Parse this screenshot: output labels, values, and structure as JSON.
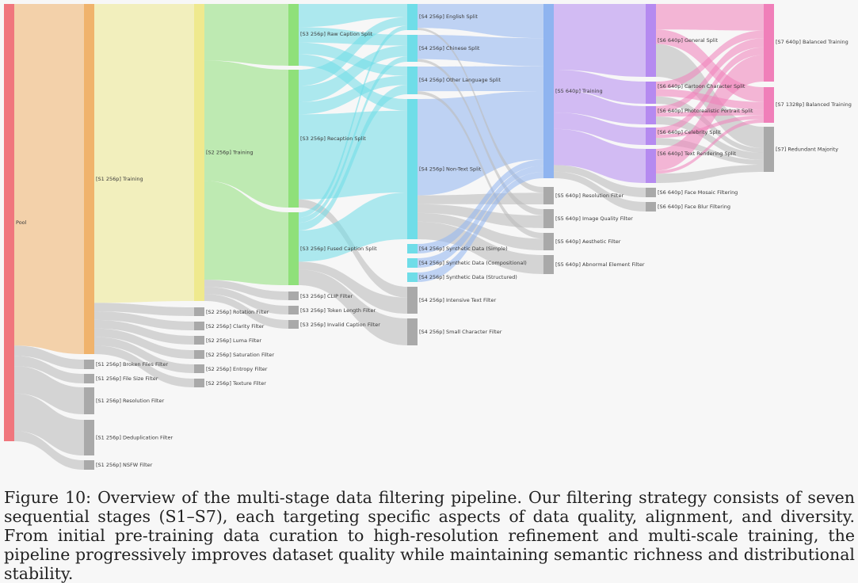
{
  "figure": {
    "caption": "Figure 10: Overview of the multi-stage data filtering pipeline. Our filtering strategy consists of seven sequential stages (S1–S7), each targeting specific aspects of data quality, alignment, and diversity. From initial pre-training data curation to high-resolution refinement and multi-scale training, the pipeline progressively improves dataset quality while maintaining semantic richness and distributional stability."
  },
  "colors": {
    "pool": "#f0767d",
    "s1": "#f0b36c",
    "s2": "#efe98e",
    "s3": "#8fe07a",
    "s4": "#6fdde8",
    "s5": "#8fb4f0",
    "s6": "#b58af0",
    "s7": "#f07fb9",
    "filter": "#a9a9a9",
    "gray_link": "#bdbdbd"
  },
  "nodes": [
    {
      "id": "pool",
      "label": "Pool",
      "kind": "pool"
    },
    {
      "id": "s1t",
      "label": "[S1 256p] Training",
      "kind": "s1"
    },
    {
      "id": "s1f1",
      "label": "[S1 256p] Broken Files Filter",
      "kind": "filter"
    },
    {
      "id": "s1f2",
      "label": "[S1 256p] File Size Filter",
      "kind": "filter"
    },
    {
      "id": "s1f3",
      "label": "[S1 256p] Resolution Filter",
      "kind": "filter"
    },
    {
      "id": "s1f4",
      "label": "[S1 256p] Deduplication Filter",
      "kind": "filter"
    },
    {
      "id": "s1f5",
      "label": "[S1 256p] NSFW Filter",
      "kind": "filter"
    },
    {
      "id": "s2t",
      "label": "[S2 256p] Training",
      "kind": "s2"
    },
    {
      "id": "s2f1",
      "label": "[S2 256p] Rotation Filter",
      "kind": "filter"
    },
    {
      "id": "s2f2",
      "label": "[S2 256p] Clarity Filter",
      "kind": "filter"
    },
    {
      "id": "s2f3",
      "label": "[S2 256p] Luma Filter",
      "kind": "filter"
    },
    {
      "id": "s2f4",
      "label": "[S2 256p] Saturation Filter",
      "kind": "filter"
    },
    {
      "id": "s2f5",
      "label": "[S2 256p] Entropy Filter",
      "kind": "filter"
    },
    {
      "id": "s2f6",
      "label": "[S2 256p] Texture Filter",
      "kind": "filter"
    },
    {
      "id": "s3raw",
      "label": "[S3 256p] Raw Caption Split",
      "kind": "s3"
    },
    {
      "id": "s3rec",
      "label": "[S3 256p] Recaption Split",
      "kind": "s3"
    },
    {
      "id": "s3fus",
      "label": "[S3 256p] Fused Caption Split",
      "kind": "s3"
    },
    {
      "id": "s3f1",
      "label": "[S3 256p] CLIP Filter",
      "kind": "filter"
    },
    {
      "id": "s3f2",
      "label": "[S3 256p] Token Length Filter",
      "kind": "filter"
    },
    {
      "id": "s3f3",
      "label": "[S3 256p] Invalid Caption Filter",
      "kind": "filter"
    },
    {
      "id": "s4en",
      "label": "[S4 256p] English Split",
      "kind": "s4"
    },
    {
      "id": "s4zh",
      "label": "[S4 256p] Chinese Split",
      "kind": "s4"
    },
    {
      "id": "s4ol",
      "label": "[S4 256p] Other Language Split",
      "kind": "s4"
    },
    {
      "id": "s4nt",
      "label": "[S4 256p] Non-Text Split",
      "kind": "s4"
    },
    {
      "id": "s4sy1",
      "label": "[S4 256p] Synthetic Data (Simple)",
      "kind": "s4"
    },
    {
      "id": "s4sy2",
      "label": "[S4 256p] Synthetic Data (Compositional)",
      "kind": "s4"
    },
    {
      "id": "s4sy3",
      "label": "[S4 256p] Synthetic Data (Structured)",
      "kind": "s4"
    },
    {
      "id": "s4f1",
      "label": "[S4 256p] Intensive Text Filter",
      "kind": "filter"
    },
    {
      "id": "s4f2",
      "label": "[S4 256p] Small Character Filter",
      "kind": "filter"
    },
    {
      "id": "s5t",
      "label": "[S5 640p] Training",
      "kind": "s5"
    },
    {
      "id": "s5f1",
      "label": "[S5 640p] Resolution Filter",
      "kind": "filter"
    },
    {
      "id": "s5f2",
      "label": "[S5 640p] Image Quality Filter",
      "kind": "filter"
    },
    {
      "id": "s5f3",
      "label": "[S5 640p] Aesthetic Filter",
      "kind": "filter"
    },
    {
      "id": "s5f4",
      "label": "[S5 640p] Abnormal Element Filter",
      "kind": "filter"
    },
    {
      "id": "s6gen",
      "label": "[S6 640p] General Split",
      "kind": "s6"
    },
    {
      "id": "s6car",
      "label": "[S6 640p] Cartoon Character Split",
      "kind": "s6"
    },
    {
      "id": "s6pho",
      "label": "[S6 640p] Photorealistic Portrait Split",
      "kind": "s6"
    },
    {
      "id": "s6cel",
      "label": "[S6 640p] Celebrity Split",
      "kind": "s6"
    },
    {
      "id": "s6txt",
      "label": "[S6 640p] Text Rendering Split",
      "kind": "s6"
    },
    {
      "id": "s6f1",
      "label": "[S6 640p] Face Mosaic Filtering",
      "kind": "filter"
    },
    {
      "id": "s6f2",
      "label": "[S6 640p] Face Blur Filtering",
      "kind": "filter"
    },
    {
      "id": "s7bt",
      "label": "[S7 640p] Balanced Training",
      "kind": "s7"
    },
    {
      "id": "s7b1",
      "label": "[S7 1328p] Balanced Training",
      "kind": "s7"
    },
    {
      "id": "s7rm",
      "label": "[S7] Redundant Majority",
      "kind": "filter"
    }
  ],
  "links": [
    [
      "pool",
      "s1t",
      500
    ],
    [
      "pool",
      "s1f1",
      15
    ],
    [
      "pool",
      "s1f2",
      15
    ],
    [
      "pool",
      "s1f3",
      40
    ],
    [
      "pool",
      "s1f4",
      55
    ],
    [
      "pool",
      "s1f5",
      15
    ],
    [
      "s1t",
      "s2t",
      420
    ],
    [
      "s1t",
      "s2f1",
      12
    ],
    [
      "s1t",
      "s2f2",
      12
    ],
    [
      "s1t",
      "s2f3",
      12
    ],
    [
      "s1t",
      "s2f4",
      12
    ],
    [
      "s1t",
      "s2f5",
      12
    ],
    [
      "s1t",
      "s2f6",
      12
    ],
    [
      "s2t",
      "s3raw",
      80
    ],
    [
      "s2t",
      "s3rec",
      170
    ],
    [
      "s2t",
      "s3fus",
      140
    ],
    [
      "s2t",
      "s3f1",
      10
    ],
    [
      "s2t",
      "s3f2",
      10
    ],
    [
      "s2t",
      "s3f3",
      10
    ],
    [
      "s3raw",
      "s4en",
      30
    ],
    [
      "s3raw",
      "s4zh",
      20
    ],
    [
      "s3raw",
      "s4ol",
      15
    ],
    [
      "s3raw",
      "s4nt",
      15
    ],
    [
      "s3rec",
      "s4en",
      20
    ],
    [
      "s3rec",
      "s4zh",
      20
    ],
    [
      "s3rec",
      "s4ol",
      15
    ],
    [
      "s3rec",
      "s4nt",
      105
    ],
    [
      "s3rec",
      "s4f1",
      10
    ],
    [
      "s3fus",
      "s4en",
      10
    ],
    [
      "s3fus",
      "s4zh",
      10
    ],
    [
      "s3fus",
      "s4ol",
      15
    ],
    [
      "s3fus",
      "s4nt",
      60
    ],
    [
      "s3fus",
      "s4f1",
      15
    ],
    [
      "s3fus",
      "s4f2",
      30
    ],
    [
      "s4en",
      "s5t",
      55
    ],
    [
      "s4zh",
      "s5t",
      45
    ],
    [
      "s4ol",
      "s5t",
      40
    ],
    [
      "s4nt",
      "s5t",
      110
    ],
    [
      "s4en",
      "s5f1",
      5
    ],
    [
      "s4zh",
      "s5f2",
      5
    ],
    [
      "s4ol",
      "s5f3",
      5
    ],
    [
      "s4nt",
      "s5f1",
      10
    ],
    [
      "s4nt",
      "s5f2",
      10
    ],
    [
      "s4nt",
      "s5f3",
      10
    ],
    [
      "s4nt",
      "s5f4",
      20
    ],
    [
      "s4sy1",
      "s5t",
      10
    ],
    [
      "s4sy2",
      "s5t",
      10
    ],
    [
      "s4sy3",
      "s5t",
      10
    ],
    [
      "s5t",
      "s6gen",
      100
    ],
    [
      "s5t",
      "s6car",
      30
    ],
    [
      "s5t",
      "s6pho",
      35
    ],
    [
      "s5t",
      "s6cel",
      25
    ],
    [
      "s5t",
      "s6txt",
      55
    ],
    [
      "s5t",
      "s6f1",
      10
    ],
    [
      "s5t",
      "s6f2",
      10
    ],
    [
      "s6gen",
      "s7bt",
      35
    ],
    [
      "s6gen",
      "s7b1",
      20
    ],
    [
      "s6gen",
      "s7rm",
      45
    ],
    [
      "s6car",
      "s7bt",
      10
    ],
    [
      "s6car",
      "s7b1",
      10
    ],
    [
      "s6car",
      "s7rm",
      10
    ],
    [
      "s6pho",
      "s7bt",
      12
    ],
    [
      "s6pho",
      "s7b1",
      8
    ],
    [
      "s6pho",
      "s7rm",
      15
    ],
    [
      "s6cel",
      "s7bt",
      10
    ],
    [
      "s6cel",
      "s7b1",
      5
    ],
    [
      "s6cel",
      "s7rm",
      10
    ],
    [
      "s6txt",
      "s7bt",
      35
    ],
    [
      "s6txt",
      "s7b1",
      5
    ],
    [
      "s6txt",
      "s7rm",
      15
    ]
  ]
}
